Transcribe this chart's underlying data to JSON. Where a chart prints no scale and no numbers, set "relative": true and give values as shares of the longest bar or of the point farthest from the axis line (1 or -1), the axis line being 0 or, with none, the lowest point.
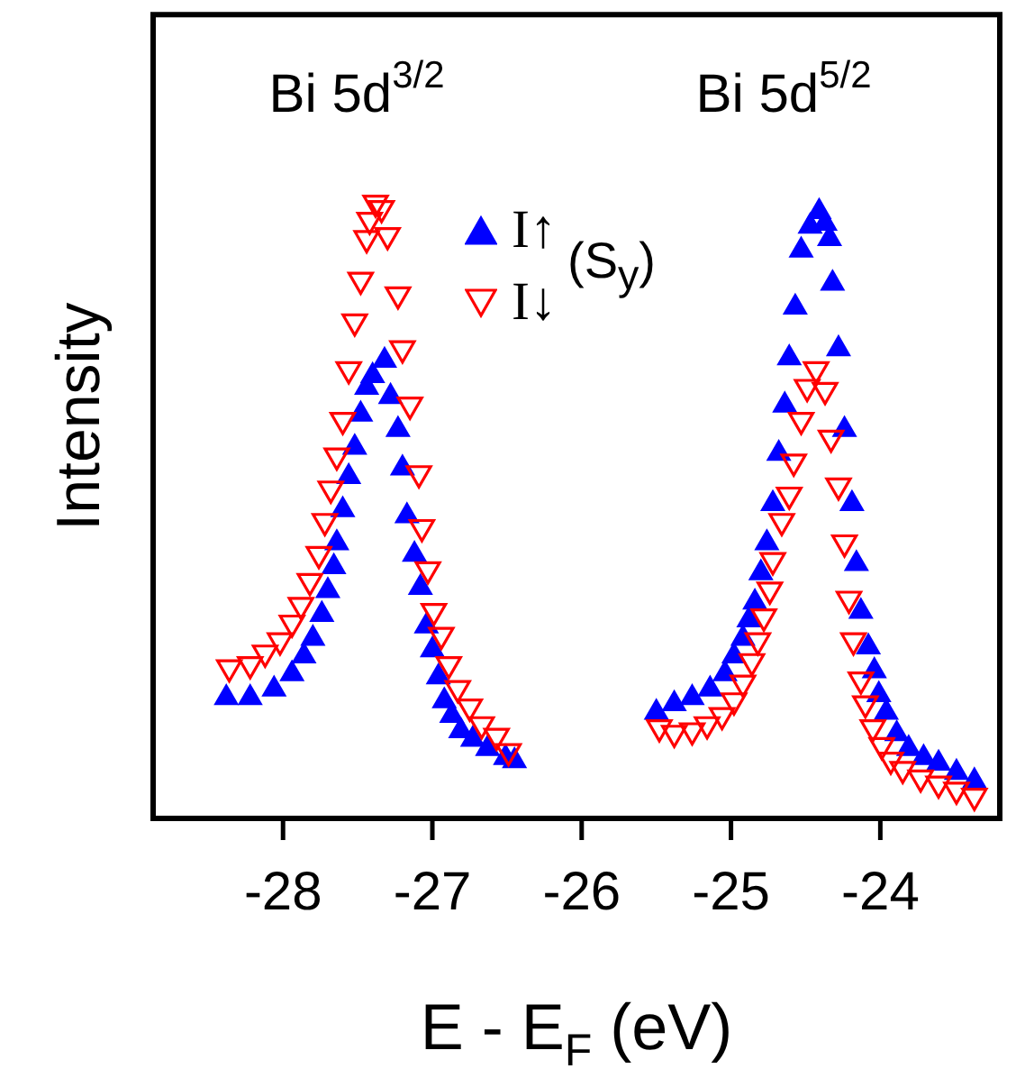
{
  "chart_data": {
    "type": "scatter",
    "xlabel": "E - E$_{F}$ (eV)",
    "ylabel": "Intensity",
    "relative": true,
    "grid": false,
    "legend": "top",
    "legend_title": "(S$_{y}$)",
    "xlim": [
      -28.87,
      -23.2
    ],
    "xticks": [
      -28,
      -27,
      -26,
      -25,
      -24
    ],
    "annotations": [
      "Bi 5d$^{3/2}$",
      "Bi 5d$^{5/2}$"
    ],
    "series": [
      {
        "name": "I↑",
        "color": "#0000ff",
        "marker": "triangle",
        "x": [
          -28.38,
          -28.22,
          -28.06,
          -27.94,
          -27.86,
          -27.8,
          -27.74,
          -27.7,
          -27.66,
          -27.64,
          -27.6,
          -27.56,
          -27.52,
          -27.48,
          -27.44,
          -27.4,
          -27.32,
          -27.28,
          -27.23,
          -27.2,
          -27.17,
          -27.12,
          -27.08,
          -27.04,
          -27.0,
          -26.96,
          -26.92,
          -26.87,
          -26.81,
          -26.73,
          -26.63,
          -26.51,
          -26.45,
          -25.5,
          -25.38,
          -25.26,
          -25.14,
          -25.04,
          -24.98,
          -24.92,
          -24.88,
          -24.84,
          -24.8,
          -24.76,
          -24.72,
          -24.68,
          -24.64,
          -24.61,
          -24.57,
          -24.53,
          -24.47,
          -24.41,
          -24.37,
          -24.34,
          -24.32,
          -24.28,
          -24.24,
          -24.19,
          -24.16,
          -24.13,
          -24.08,
          -24.04,
          -24.01,
          -23.96,
          -23.89,
          -23.81,
          -23.71,
          -23.61,
          -23.49,
          -23.37
        ],
        "values": [
          0.197,
          0.197,
          0.211,
          0.236,
          0.265,
          0.294,
          0.333,
          0.372,
          0.411,
          0.45,
          0.504,
          0.558,
          0.606,
          0.66,
          0.704,
          0.723,
          0.748,
          0.689,
          0.635,
          0.572,
          0.494,
          0.431,
          0.377,
          0.314,
          0.275,
          0.231,
          0.192,
          0.168,
          0.143,
          0.129,
          0.114,
          0.099,
          0.094,
          0.173,
          0.187,
          0.197,
          0.211,
          0.236,
          0.265,
          0.294,
          0.324,
          0.353,
          0.401,
          0.45,
          0.514,
          0.596,
          0.675,
          0.752,
          0.835,
          0.928,
          0.967,
          0.991,
          0.972,
          0.947,
          0.874,
          0.767,
          0.635,
          0.514,
          0.416,
          0.338,
          0.28,
          0.241,
          0.202,
          0.173,
          0.138,
          0.114,
          0.099,
          0.09,
          0.075,
          0.061
        ]
      },
      {
        "name": "I↓",
        "color": "#ff0000",
        "x": [
          -28.36,
          -28.22,
          -28.12,
          -28.02,
          -27.94,
          -27.88,
          -27.82,
          -27.76,
          -27.72,
          -27.68,
          -27.64,
          -27.6,
          -27.56,
          -27.52,
          -27.48,
          -27.44,
          -27.42,
          -27.38,
          -27.34,
          -27.3,
          -27.23,
          -27.2,
          -27.15,
          -27.09,
          -27.07,
          -27.03,
          -26.99,
          -26.94,
          -26.89,
          -26.83,
          -26.75,
          -26.67,
          -26.57,
          -26.49,
          -25.48,
          -25.38,
          -25.26,
          -25.16,
          -25.06,
          -24.98,
          -24.92,
          -24.86,
          -24.82,
          -24.78,
          -24.74,
          -24.72,
          -24.66,
          -24.61,
          -24.58,
          -24.53,
          -24.49,
          -24.43,
          -24.37,
          -24.33,
          -24.28,
          -24.24,
          -24.21,
          -24.18,
          -24.13,
          -24.1,
          -24.05,
          -23.99,
          -23.93,
          -23.85,
          -23.73,
          -23.61,
          -23.49,
          -23.37
        ],
        "values": [
          0.241,
          0.246,
          0.265,
          0.285,
          0.314,
          0.343,
          0.382,
          0.426,
          0.48,
          0.533,
          0.587,
          0.645,
          0.728,
          0.806,
          0.874,
          0.942,
          0.972,
          1,
          0.991,
          0.947,
          0.85,
          0.762,
          0.67,
          0.558,
          0.47,
          0.401,
          0.333,
          0.294,
          0.246,
          0.207,
          0.177,
          0.148,
          0.129,
          0.104,
          0.143,
          0.134,
          0.138,
          0.148,
          0.163,
          0.187,
          0.216,
          0.251,
          0.285,
          0.324,
          0.368,
          0.416,
          0.48,
          0.523,
          0.577,
          0.645,
          0.699,
          0.728,
          0.694,
          0.616,
          0.538,
          0.445,
          0.353,
          0.285,
          0.221,
          0.182,
          0.143,
          0.114,
          0.09,
          0.075,
          0.061,
          0.051,
          0.041,
          0.031
        ]
      }
    ]
  }
}
